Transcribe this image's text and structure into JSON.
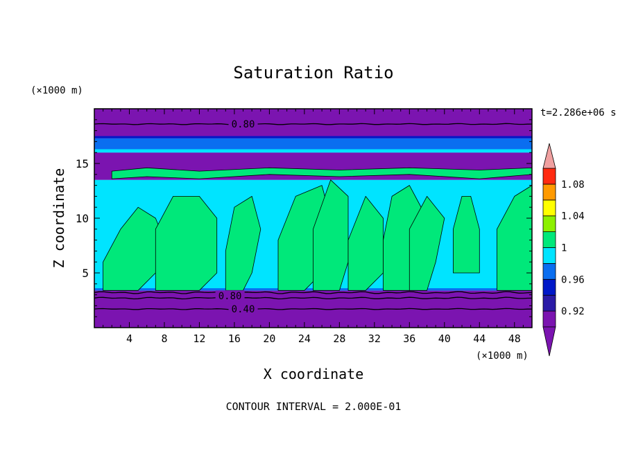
{
  "chart_data": {
    "type": "heatmap",
    "title": "Saturation Ratio",
    "xlabel": "X coordinate",
    "ylabel": "Z coordinate",
    "x_unit": "(×1000 m)",
    "y_unit": "(×1000 m)",
    "time_label": "t=2.286e+06 s",
    "footer": "CONTOUR INTERVAL = 2.000E-01",
    "xlim": [
      0,
      50
    ],
    "ylim": [
      0,
      20
    ],
    "x_ticks": [
      4,
      8,
      12,
      16,
      20,
      24,
      28,
      32,
      36,
      40,
      44,
      48
    ],
    "y_ticks": [
      5,
      10,
      15
    ],
    "contour_labels": [
      {
        "text": "0.80",
        "x": 17,
        "z": 18.6
      },
      {
        "text": "0.80",
        "x": 15.5,
        "z": 2.9
      },
      {
        "text": "0.40",
        "x": 17,
        "z": 1.7
      }
    ],
    "colorbar": {
      "levels": [
        0.9,
        0.92,
        0.94,
        0.96,
        0.98,
        1.0,
        1.02,
        1.04,
        1.06,
        1.08,
        1.1
      ],
      "tick_labels": [
        "0.92",
        "0.96",
        "1",
        "1.04",
        "1.08"
      ],
      "tick_values": [
        0.92,
        0.96,
        1.0,
        1.04,
        1.08
      ],
      "colors": [
        "#7b14b0",
        "#2a1aa6",
        "#0018c8",
        "#0a6ef0",
        "#00e4ff",
        "#00e87a",
        "#8cf000",
        "#ffff00",
        "#ff9a00",
        "#ff2a10"
      ],
      "under_color": "#7b14b0",
      "over_color": "#f0a0a0"
    },
    "field_bands": [
      {
        "z0": 0,
        "z1": 3.4,
        "value": 0.6
      },
      {
        "z0": 3.4,
        "z1": 13.5,
        "value": 0.99
      },
      {
        "z0": 13.5,
        "z1": 16.0,
        "value": 0.85
      },
      {
        "z0": 16.0,
        "z1": 17.3,
        "value": 0.97
      },
      {
        "z0": 17.3,
        "z1": 20,
        "value": 0.7
      }
    ],
    "supersaturated_regions": [
      {
        "x": [
          1,
          3,
          5,
          7,
          8,
          7,
          5,
          3,
          1
        ],
        "z": [
          3.4,
          3.4,
          3.4,
          5,
          8,
          10,
          11,
          9,
          6
        ],
        "value": 1.01
      },
      {
        "x": [
          7,
          9,
          12,
          14,
          14,
          12,
          9,
          7
        ],
        "z": [
          3.4,
          3.4,
          3.4,
          5,
          10,
          12,
          12,
          9
        ],
        "value": 1.01
      },
      {
        "x": [
          15,
          17,
          18,
          19,
          18,
          16,
          15
        ],
        "z": [
          3.4,
          3.4,
          5,
          9,
          12,
          11,
          7
        ],
        "value": 1.01
      },
      {
        "x": [
          21,
          24,
          26,
          27,
          26,
          23,
          21
        ],
        "z": [
          3.4,
          3.4,
          5,
          10,
          13,
          12,
          8
        ],
        "value": 1.01
      },
      {
        "x": [
          25,
          28,
          29,
          29,
          27,
          25
        ],
        "z": [
          3.4,
          3.4,
          6,
          12,
          13.5,
          9
        ],
        "value": 1.01
      },
      {
        "x": [
          29,
          31,
          33,
          33,
          31,
          29
        ],
        "z": [
          3.4,
          3.4,
          5,
          10,
          12,
          8
        ],
        "value": 1.01
      },
      {
        "x": [
          33,
          36,
          37,
          38,
          36,
          34,
          33
        ],
        "z": [
          3.4,
          3.4,
          5,
          10,
          13,
          12,
          8
        ],
        "value": 1.01
      },
      {
        "x": [
          36,
          38,
          39,
          40,
          38,
          36
        ],
        "z": [
          3.4,
          3.4,
          6,
          10,
          12,
          9
        ],
        "value": 1.01
      },
      {
        "x": [
          41,
          44,
          44,
          43,
          42,
          41
        ],
        "z": [
          5,
          5,
          9,
          12,
          12,
          9
        ],
        "value": 1.01
      },
      {
        "x": [
          46,
          48,
          50,
          50,
          48,
          46
        ],
        "z": [
          3.4,
          3.4,
          3.4,
          13,
          12,
          9
        ],
        "value": 1.01
      },
      {
        "x": [
          2,
          6,
          12,
          20,
          28,
          36,
          44,
          50,
          50,
          44,
          36,
          28,
          20,
          12,
          6,
          2
        ],
        "z": [
          13.6,
          13.8,
          13.6,
          14,
          13.8,
          14,
          13.6,
          14,
          14.6,
          14.4,
          14.6,
          14.4,
          14.6,
          14.3,
          14.6,
          14.3
        ],
        "value": 1.01
      }
    ]
  }
}
